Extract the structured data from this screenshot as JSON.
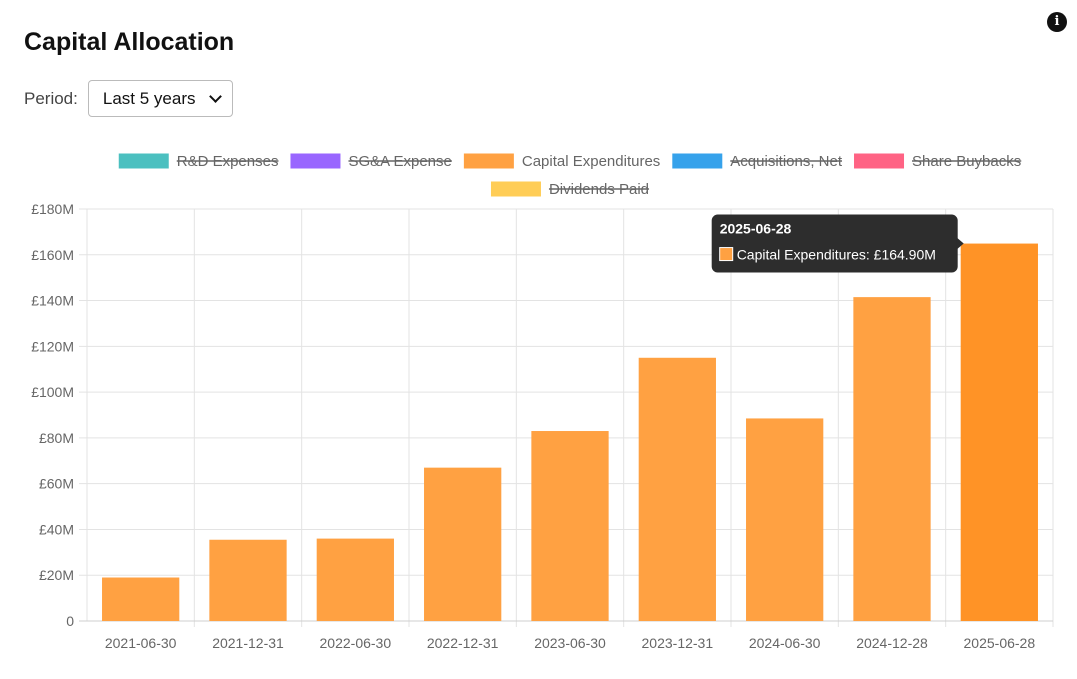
{
  "header": {
    "title": "Capital Allocation",
    "info_icon": "info-icon"
  },
  "controls": {
    "period_label": "Period:",
    "period_value": "Last 5 years"
  },
  "colors": {
    "rd": "#4bc0c0",
    "sga": "#9966ff",
    "capex": "#ffa142",
    "capex_hover": "#ff9326",
    "acquisitions": "#36a2eb",
    "buybacks": "#ff6384",
    "dividends": "#ffcd56",
    "tooltip_bg": "#2d2d2d"
  },
  "chart_data": {
    "type": "bar",
    "title": "Capital Allocation",
    "xlabel": "",
    "ylabel": "",
    "ylim": [
      0,
      180
    ],
    "y_unit": "£M",
    "grid": true,
    "legend_position": "top",
    "yticks": [
      "0",
      "£20M",
      "£40M",
      "£60M",
      "£80M",
      "£100M",
      "£120M",
      "£140M",
      "£160M",
      "£180M"
    ],
    "legend": [
      {
        "label": "R&D Expenses",
        "color_key": "rd",
        "hidden": true
      },
      {
        "label": "SG&A Expense",
        "color_key": "sga",
        "hidden": true
      },
      {
        "label": "Capital Expenditures",
        "color_key": "capex",
        "hidden": false
      },
      {
        "label": "Acquisitions, Net",
        "color_key": "acquisitions",
        "hidden": true
      },
      {
        "label": "Share Buybacks",
        "color_key": "buybacks",
        "hidden": true
      },
      {
        "label": "Dividends Paid",
        "color_key": "dividends",
        "hidden": true
      }
    ],
    "categories": [
      "2021-06-30",
      "2021-12-31",
      "2022-06-30",
      "2022-12-31",
      "2023-06-30",
      "2023-12-31",
      "2024-06-30",
      "2024-12-28",
      "2025-06-28"
    ],
    "series": [
      {
        "name": "Capital Expenditures",
        "values": [
          19,
          35.5,
          36,
          67,
          83,
          115,
          88.5,
          141.5,
          164.9
        ]
      }
    ],
    "tooltip": {
      "category_index": 8,
      "title": "2025-06-28",
      "label": "Capital Expenditures: £164.90M"
    }
  }
}
